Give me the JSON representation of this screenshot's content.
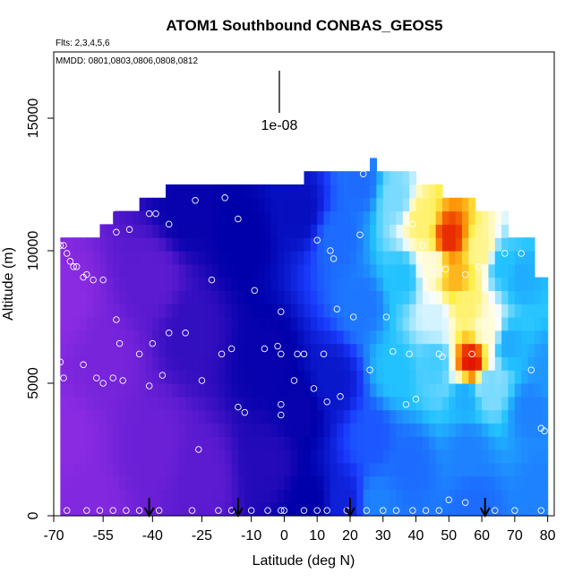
{
  "chart_data": {
    "type": "heatmap",
    "title": "ATOM1 Southbound CONBAS_GEOS5",
    "flights_note": "Flts: 2,3,4,5,6",
    "dates_note": "MMDD: 0801,0803,0806,0808,0812",
    "xlabel": "Latitude (deg N)",
    "ylabel": "Altitude (m)",
    "xlim": [
      -70,
      82
    ],
    "ylim": [
      0,
      17500
    ],
    "x_ticks": [
      -70,
      -55,
      -40,
      -25,
      -10,
      0,
      10,
      20,
      30,
      40,
      50,
      60,
      70,
      80
    ],
    "y_ticks": [
      0,
      5000,
      10000,
      15000
    ],
    "scale_bar_label": "1e-08",
    "colormap": [
      "#8a2be2",
      "#5a1ad0",
      "#0000aa",
      "#1a3cff",
      "#22c2ff",
      "#ffffff",
      "#ffee44",
      "#ff8800",
      "#dd0000"
    ],
    "outline_top": [
      [
        -68,
        10500
      ],
      [
        -57,
        10800
      ],
      [
        -52,
        11200
      ],
      [
        -45,
        11700
      ],
      [
        -37,
        12300
      ],
      [
        -22,
        12500
      ],
      [
        -4,
        12500
      ],
      [
        3,
        12500
      ],
      [
        6,
        12900
      ],
      [
        25,
        12900
      ],
      [
        26,
        13500
      ],
      [
        28,
        13000
      ],
      [
        36,
        12600
      ],
      [
        40,
        12300
      ],
      [
        48,
        12000
      ],
      [
        58,
        11500
      ],
      [
        68,
        10500
      ],
      [
        76,
        9000
      ],
      [
        80,
        7000
      ]
    ],
    "grid_x_step": 2,
    "grid_y_step": 500,
    "anchors": [
      {
        "x": -67,
        "y": 8000,
        "v": 0.0
      },
      {
        "x": -67,
        "y": 3000,
        "v": 0.0
      },
      {
        "x": -60,
        "y": 500,
        "v": 0.02
      },
      {
        "x": -55,
        "y": 6000,
        "v": 0.05
      },
      {
        "x": -40,
        "y": 9000,
        "v": 0.12
      },
      {
        "x": -40,
        "y": 2500,
        "v": 0.08
      },
      {
        "x": -30,
        "y": 11500,
        "v": 0.24
      },
      {
        "x": -28,
        "y": 7000,
        "v": 0.18
      },
      {
        "x": -25,
        "y": 1500,
        "v": 0.12
      },
      {
        "x": -12,
        "y": 10500,
        "v": 0.25
      },
      {
        "x": -5,
        "y": 6000,
        "v": 0.24
      },
      {
        "x": -5,
        "y": 2000,
        "v": 0.2
      },
      {
        "x": 5,
        "y": 11500,
        "v": 0.28
      },
      {
        "x": 5,
        "y": 4000,
        "v": 0.24
      },
      {
        "x": 8,
        "y": 500,
        "v": 0.25
      },
      {
        "x": 16,
        "y": 10500,
        "v": 0.42
      },
      {
        "x": 15,
        "y": 5000,
        "v": 0.3
      },
      {
        "x": 18,
        "y": 500,
        "v": 0.32
      },
      {
        "x": 23,
        "y": 12500,
        "v": 0.42
      },
      {
        "x": 24,
        "y": 8000,
        "v": 0.43
      },
      {
        "x": 26,
        "y": 3000,
        "v": 0.4
      },
      {
        "x": 28,
        "y": 500,
        "v": 0.44
      },
      {
        "x": 34,
        "y": 12000,
        "v": 0.55
      },
      {
        "x": 36,
        "y": 9000,
        "v": 0.5
      },
      {
        "x": 34,
        "y": 5500,
        "v": 0.5
      },
      {
        "x": 38,
        "y": 2000,
        "v": 0.42
      },
      {
        "x": 42,
        "y": 11200,
        "v": 0.72
      },
      {
        "x": 45,
        "y": 9500,
        "v": 0.65
      },
      {
        "x": 46,
        "y": 7500,
        "v": 0.6
      },
      {
        "x": 46,
        "y": 5800,
        "v": 0.52
      },
      {
        "x": 50,
        "y": 10500,
        "v": 0.96
      },
      {
        "x": 52,
        "y": 9000,
        "v": 0.82
      },
      {
        "x": 55,
        "y": 8000,
        "v": 0.72
      },
      {
        "x": 57,
        "y": 5800,
        "v": 0.98
      },
      {
        "x": 55,
        "y": 4500,
        "v": 0.48
      },
      {
        "x": 56,
        "y": 2500,
        "v": 0.44
      },
      {
        "x": 58,
        "y": 500,
        "v": 0.42
      },
      {
        "x": 60,
        "y": 10000,
        "v": 0.7
      },
      {
        "x": 62,
        "y": 7000,
        "v": 0.65
      },
      {
        "x": 62,
        "y": 5000,
        "v": 0.55
      },
      {
        "x": 66,
        "y": 9500,
        "v": 0.5
      },
      {
        "x": 68,
        "y": 6500,
        "v": 0.48
      },
      {
        "x": 72,
        "y": 9000,
        "v": 0.48
      },
      {
        "x": 75,
        "y": 4000,
        "v": 0.44
      },
      {
        "x": 78,
        "y": 1000,
        "v": 0.44
      },
      {
        "x": 80,
        "y": 5500,
        "v": 0.46
      }
    ],
    "sample_points": [
      [
        -68,
        10200
      ],
      [
        -67,
        10200
      ],
      [
        -66,
        9900
      ],
      [
        -65,
        9600
      ],
      [
        -64,
        9400
      ],
      [
        -63,
        9400
      ],
      [
        -61,
        9000
      ],
      [
        -60,
        9100
      ],
      [
        -58,
        8900
      ],
      [
        -55,
        8900
      ],
      [
        -52,
        11600
      ],
      [
        -51,
        10700
      ],
      [
        -47,
        10800
      ],
      [
        -41,
        11400
      ],
      [
        -39,
        11400
      ],
      [
        -35,
        11000
      ],
      [
        -27,
        11900
      ],
      [
        -18,
        12000
      ],
      [
        -14,
        11200
      ],
      [
        -68,
        5800
      ],
      [
        -67,
        5200
      ],
      [
        -61,
        5700
      ],
      [
        -57,
        5200
      ],
      [
        -55,
        5000
      ],
      [
        -52,
        5200
      ],
      [
        -51,
        7400
      ],
      [
        -50,
        6500
      ],
      [
        -49,
        5100
      ],
      [
        -44,
        6100
      ],
      [
        -41,
        4900
      ],
      [
        -40,
        6500
      ],
      [
        -37,
        5300
      ],
      [
        -35,
        6900
      ],
      [
        -30,
        6900
      ],
      [
        -25,
        5100
      ],
      [
        -22,
        8900
      ],
      [
        -19,
        6100
      ],
      [
        -16,
        6300
      ],
      [
        -14,
        4100
      ],
      [
        -12,
        3900
      ],
      [
        -9,
        8500
      ],
      [
        -6,
        6300
      ],
      [
        -2,
        6400
      ],
      [
        -1,
        6100
      ],
      [
        -1,
        7700
      ],
      [
        -1,
        4200
      ],
      [
        -1,
        3800
      ],
      [
        3,
        5100
      ],
      [
        4,
        6100
      ],
      [
        6,
        6100
      ],
      [
        9,
        4800
      ],
      [
        10,
        10400
      ],
      [
        12,
        6100
      ],
      [
        13,
        4300
      ],
      [
        14,
        10000
      ],
      [
        15,
        9700
      ],
      [
        16,
        7800
      ],
      [
        17,
        4500
      ],
      [
        21,
        7500
      ],
      [
        23,
        10600
      ],
      [
        24,
        12900
      ],
      [
        26,
        5500
      ],
      [
        31,
        7500
      ],
      [
        33,
        6200
      ],
      [
        37,
        4200
      ],
      [
        38,
        6100
      ],
      [
        39,
        11000
      ],
      [
        40,
        4400
      ],
      [
        42,
        10200
      ],
      [
        47,
        6100
      ],
      [
        48,
        6000
      ],
      [
        49,
        9300
      ],
      [
        55,
        9100
      ],
      [
        57,
        6100
      ],
      [
        59,
        9400
      ],
      [
        61,
        8500
      ],
      [
        67,
        9900
      ],
      [
        72,
        9900
      ],
      [
        75,
        5500
      ],
      [
        78,
        3300
      ],
      [
        79,
        3200
      ],
      [
        -66,
        200
      ],
      [
        -60,
        200
      ],
      [
        -56,
        200
      ],
      [
        -52,
        200
      ],
      [
        -48,
        200
      ],
      [
        -44,
        200
      ],
      [
        -38,
        200
      ],
      [
        -28,
        200
      ],
      [
        -20,
        200
      ],
      [
        -16,
        200
      ],
      [
        -10,
        200
      ],
      [
        -5,
        200
      ],
      [
        -1,
        200
      ],
      [
        0,
        200
      ],
      [
        6,
        200
      ],
      [
        10,
        200
      ],
      [
        13,
        200
      ],
      [
        19,
        200
      ],
      [
        25,
        200
      ],
      [
        30,
        200
      ],
      [
        34,
        200
      ],
      [
        39,
        200
      ],
      [
        43,
        200
      ],
      [
        47,
        200
      ],
      [
        50,
        600
      ],
      [
        55,
        500
      ],
      [
        64,
        200
      ],
      [
        70,
        200
      ],
      [
        78,
        200
      ],
      [
        -26,
        2500
      ]
    ],
    "arrows_x": [
      -41,
      -14,
      20,
      61
    ]
  }
}
